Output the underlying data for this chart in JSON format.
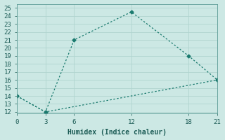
{
  "line1_x": [
    0,
    3,
    6,
    12,
    18,
    21
  ],
  "line1_y": [
    14,
    12,
    21,
    24.5,
    19,
    16
  ],
  "line2_x": [
    0,
    3,
    21
  ],
  "line2_y": [
    14,
    12,
    16
  ],
  "line_color": "#1a7a6e",
  "bg_color": "#cce8e4",
  "grid_color": "#b0d4cf",
  "xlabel": "Humidex (Indice chaleur)",
  "xlabel_fontsize": 7,
  "xticks": [
    0,
    3,
    6,
    12,
    18,
    21
  ],
  "yticks": [
    12,
    13,
    14,
    15,
    16,
    17,
    18,
    19,
    20,
    21,
    22,
    23,
    24,
    25
  ],
  "xlim": [
    0,
    21
  ],
  "ylim": [
    11.8,
    25.5
  ],
  "marker": "D",
  "marker_size": 2.5,
  "linewidth": 0.9,
  "tick_fontsize": 6.5
}
